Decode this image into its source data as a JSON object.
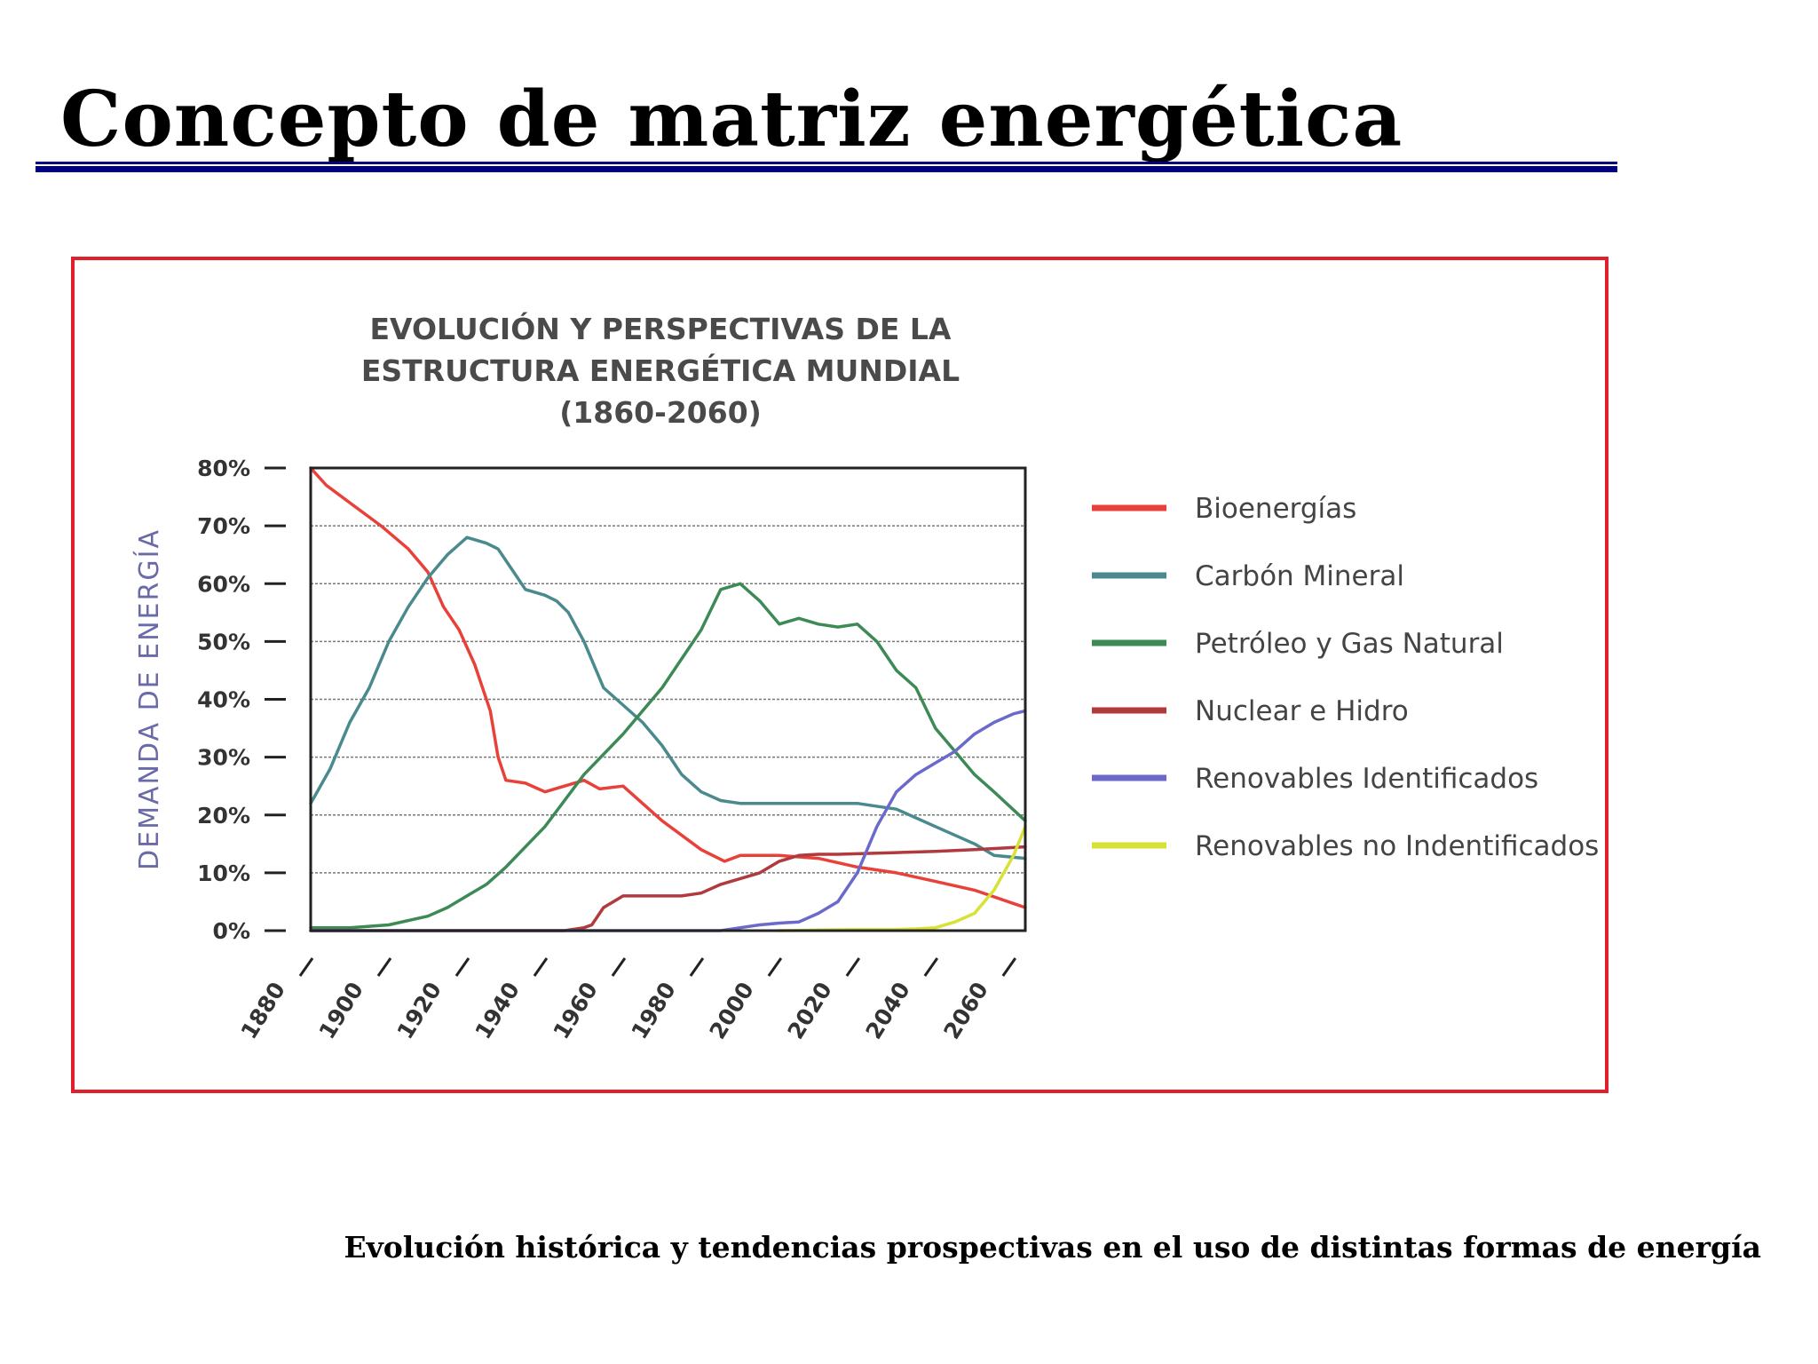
{
  "slide": {
    "title": "Concepto de matriz energética",
    "caption": "Evolución histórica y tendencias prospectivas en el uso de distintas formas de energía"
  },
  "colors": {
    "title_rule": "#000080",
    "frame_border": "#e0202a",
    "ylabel": "#6a6aa8"
  },
  "chart_data": {
    "type": "line",
    "title_lines": [
      "EVOLUCIÓN Y PERSPECTIVAS DE LA",
      "ESTRUCTURA ENERGÉTICA MUNDIAL",
      "(1860-2060)"
    ],
    "ylabel": "DEMANDA DE ENERGÍA",
    "xlabel": "",
    "x_ticks": [
      "1880",
      "1900",
      "1920",
      "1940",
      "1960",
      "1980",
      "2000",
      "2020",
      "2040",
      "2060"
    ],
    "y_ticks": [
      "0%",
      "10%",
      "20%",
      "30%",
      "40%",
      "50%",
      "60%",
      "70%",
      "80%"
    ],
    "xlim": [
      1880,
      2063
    ],
    "ylim": [
      0,
      80
    ],
    "grid": true,
    "legend_position": "right",
    "series": [
      {
        "name": "Bioenergías",
        "color": "#e8413a",
        "x": [
          1880,
          1884,
          1890,
          1898,
          1905,
          1910,
          1914,
          1918,
          1922,
          1926,
          1928,
          1930,
          1935,
          1940,
          1945,
          1950,
          1954,
          1960,
          1970,
          1980,
          1986,
          1990,
          2000,
          2010,
          2020,
          2030,
          2040,
          2050,
          2063
        ],
        "y": [
          80,
          77,
          74,
          70,
          66,
          62,
          56,
          52,
          46,
          38,
          30,
          26,
          25.5,
          24,
          25,
          26,
          24.5,
          25,
          19,
          14,
          12,
          13,
          13,
          12.5,
          11,
          10,
          8.5,
          7,
          4
        ]
      },
      {
        "name": "Carbón Mineral",
        "color": "#4a8a8e",
        "x": [
          1880,
          1885,
          1890,
          1895,
          1900,
          1905,
          1910,
          1915,
          1920,
          1925,
          1928,
          1932,
          1935,
          1940,
          1943,
          1946,
          1950,
          1955,
          1960,
          1965,
          1970,
          1975,
          1980,
          1985,
          1990,
          2000,
          2010,
          2020,
          2030,
          2040,
          2050,
          2055,
          2063
        ],
        "y": [
          22,
          28,
          36,
          42,
          50,
          56,
          61,
          65,
          68,
          67,
          66,
          62,
          59,
          58,
          57,
          55,
          50,
          42,
          39,
          36,
          32,
          27,
          24,
          22.5,
          22,
          22,
          22,
          22,
          21,
          18,
          15,
          13,
          12.5
        ]
      },
      {
        "name": "Petróleo y Gas Natural",
        "color": "#3d8a56",
        "x": [
          1880,
          1890,
          1900,
          1910,
          1915,
          1920,
          1925,
          1930,
          1940,
          1950,
          1960,
          1965,
          1970,
          1975,
          1980,
          1985,
          1990,
          1995,
          2000,
          2005,
          2010,
          2015,
          2020,
          2025,
          2030,
          2035,
          2040,
          2045,
          2050,
          2055,
          2063
        ],
        "y": [
          0.5,
          0.5,
          1,
          2.5,
          4,
          6,
          8,
          11,
          18,
          27,
          34,
          38,
          42,
          47,
          52,
          59,
          60,
          57,
          53,
          54,
          53,
          52.5,
          53,
          50,
          45,
          42,
          35,
          31,
          27,
          24,
          19
        ]
      },
      {
        "name": "Nuclear e Hidro",
        "color": "#b03a3e",
        "x": [
          1880,
          1945,
          1950,
          1952,
          1955,
          1960,
          1965,
          1970,
          1975,
          1980,
          1985,
          1990,
          1995,
          2000,
          2005,
          2010,
          2015,
          2020,
          2030,
          2040,
          2050,
          2063
        ],
        "y": [
          0,
          0,
          0.5,
          1,
          4,
          6,
          6,
          6,
          6,
          6.5,
          8,
          9,
          10,
          12,
          13,
          13.2,
          13.2,
          13.3,
          13.5,
          13.7,
          14,
          14.5
        ]
      },
      {
        "name": "Renovables Identificados",
        "color": "#6b6acb",
        "x": [
          1880,
          1985,
          1990,
          1995,
          2000,
          2005,
          2010,
          2015,
          2020,
          2025,
          2030,
          2035,
          2040,
          2045,
          2050,
          2055,
          2060,
          2063
        ],
        "y": [
          0,
          0,
          0.5,
          1,
          1.3,
          1.5,
          3,
          5,
          10,
          18,
          24,
          27,
          29,
          31,
          34,
          36,
          37.5,
          38
        ]
      },
      {
        "name": "Renovables no Indentificados",
        "color": "#d6e234",
        "x": [
          2000,
          2010,
          2020,
          2030,
          2035,
          2040,
          2045,
          2050,
          2055,
          2060,
          2063
        ],
        "y": [
          0,
          0.1,
          0.2,
          0.2,
          0.3,
          0.5,
          1.5,
          3,
          7,
          13,
          18
        ]
      }
    ]
  }
}
